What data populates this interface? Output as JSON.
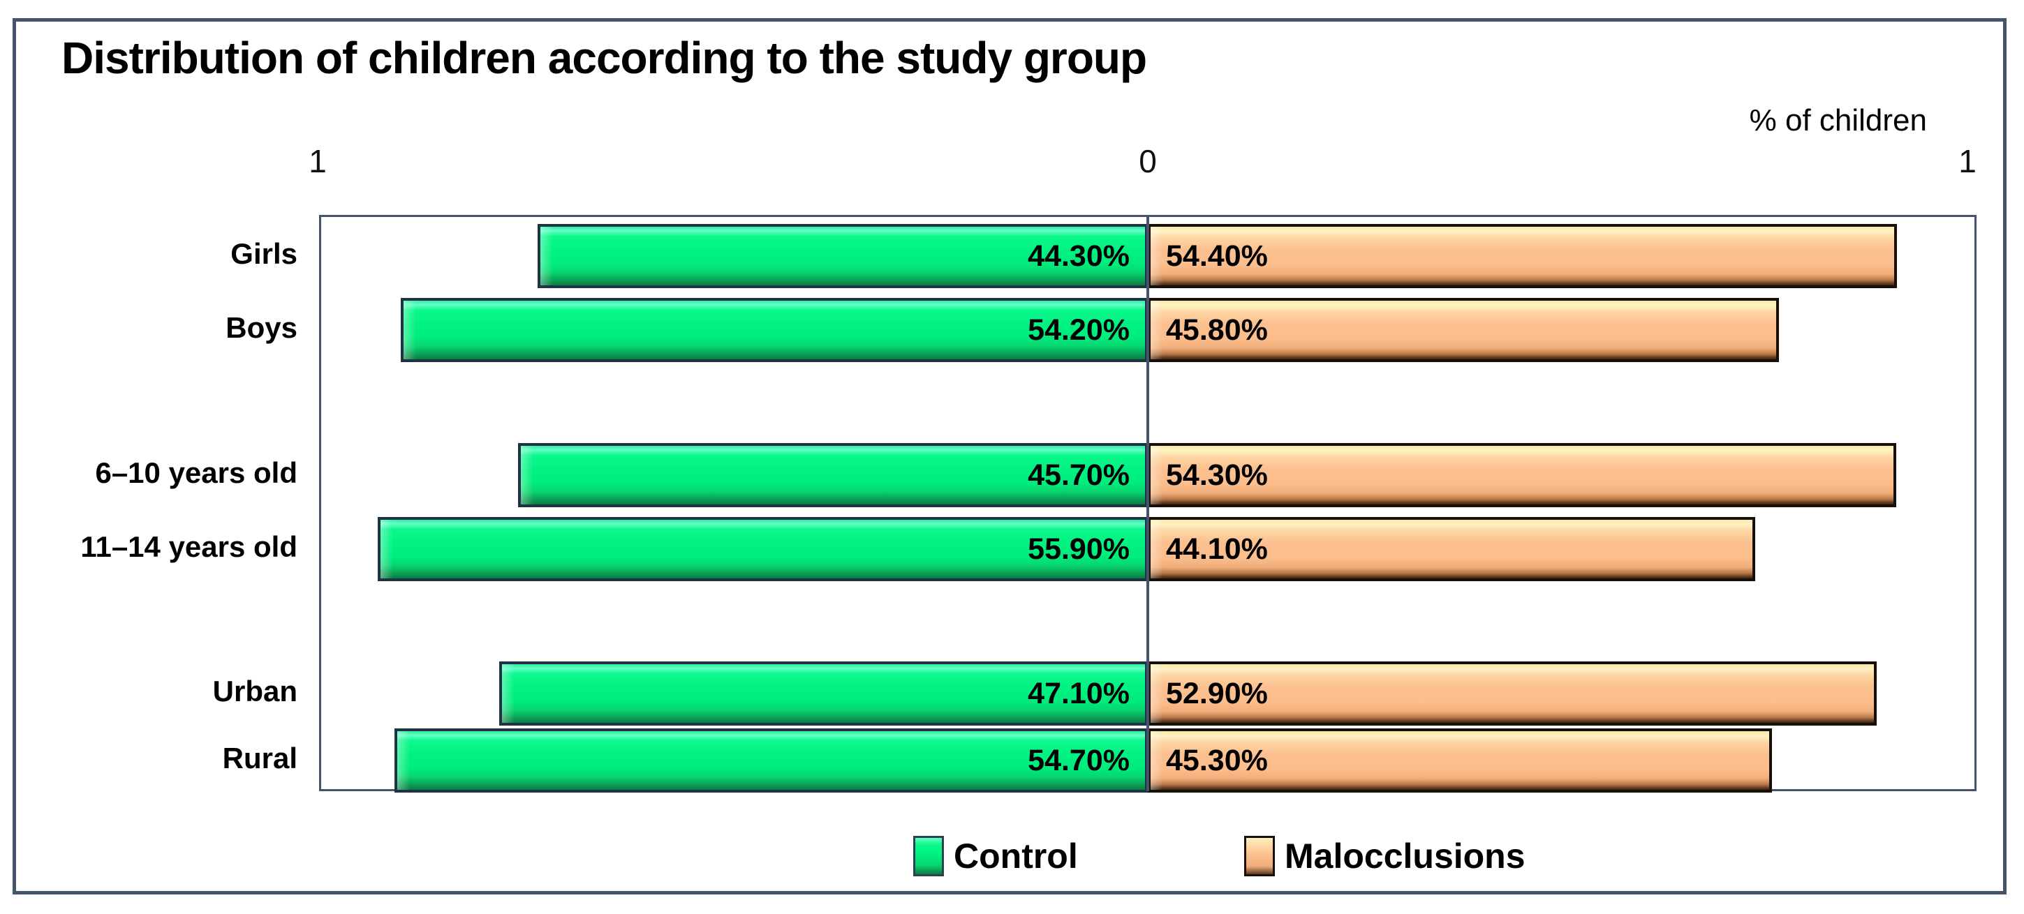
{
  "title": "Distribution of children according to the study group",
  "axis": {
    "left_label": "1",
    "center_label": "0",
    "right_label": "1",
    "unit_label": "% of children"
  },
  "legend": [
    {
      "name": "Control",
      "color": "#00EE82"
    },
    {
      "name": "Malocclusions",
      "color": "#FBBE8D"
    }
  ],
  "chart_data": {
    "type": "bar",
    "orientation": "diverging-horizontal",
    "title": "Distribution of children according to the study group",
    "xlabel": "% of children",
    "axis_tick_labels": [
      "1",
      "0",
      "1"
    ],
    "per_side_axis_max": 0.6,
    "grid": false,
    "legend_position": "bottom-center",
    "categories": [
      "Girls",
      "Boys",
      "6–10 years old",
      "11–14 years old",
      "Urban",
      "Rural"
    ],
    "groups": [
      [
        "Girls",
        "Boys"
      ],
      [
        "6–10 years old",
        "11–14 years old"
      ],
      [
        "Urban",
        "Rural"
      ]
    ],
    "series": [
      {
        "name": "Control",
        "side": "left",
        "color": "#00EE82",
        "values": [
          44.3,
          54.2,
          45.7,
          55.9,
          47.1,
          54.7
        ],
        "labels": [
          "44.30%",
          "54.20%",
          "45.70%",
          "55.90%",
          "47.10%",
          "54.70%"
        ]
      },
      {
        "name": "Malocclusions",
        "side": "right",
        "color": "#FBBE8D",
        "values": [
          54.4,
          45.8,
          54.3,
          44.1,
          52.9,
          45.3
        ],
        "labels": [
          "54.40%",
          "45.80%",
          "54.30%",
          "44.10%",
          "52.90%",
          "45.30%"
        ]
      }
    ]
  }
}
